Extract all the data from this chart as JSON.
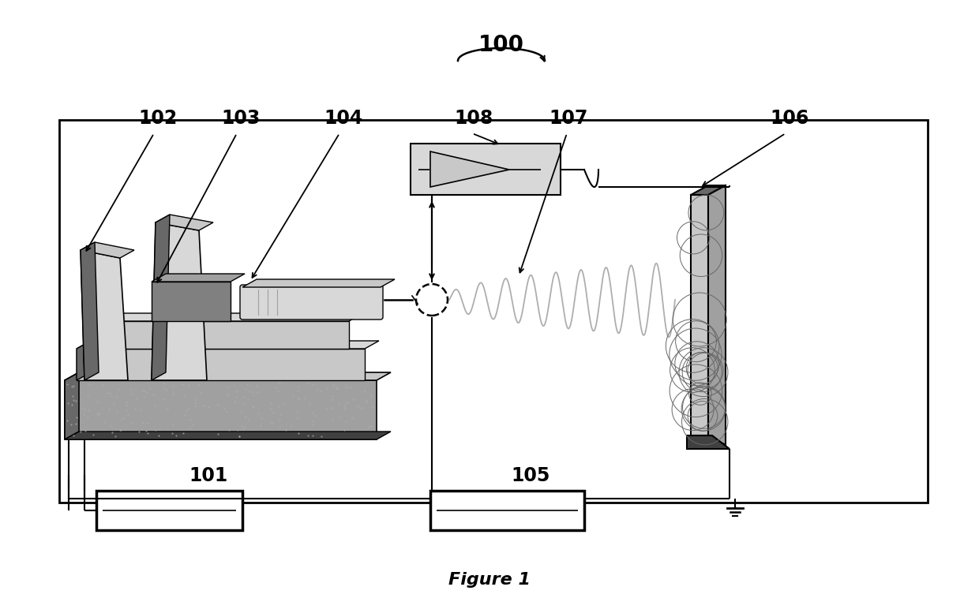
{
  "fig_label": "Figure 1",
  "label_100": "100",
  "label_101": "101",
  "label_102": "102",
  "label_103": "103",
  "label_104": "104",
  "label_105": "105",
  "label_106": "106",
  "label_107": "107",
  "label_108": "108",
  "bg_color": "#ffffff",
  "c_black": "#000000",
  "c_lgray": "#c8c8c8",
  "c_lgray2": "#d8d8d8",
  "c_mgray": "#a0a0a0",
  "c_dgray": "#686868",
  "c_dkgray": "#404040",
  "c_white": "#ffffff",
  "c_dot": "#b0b0b0",
  "label_fontsize": 17,
  "cap_fontsize": 16
}
